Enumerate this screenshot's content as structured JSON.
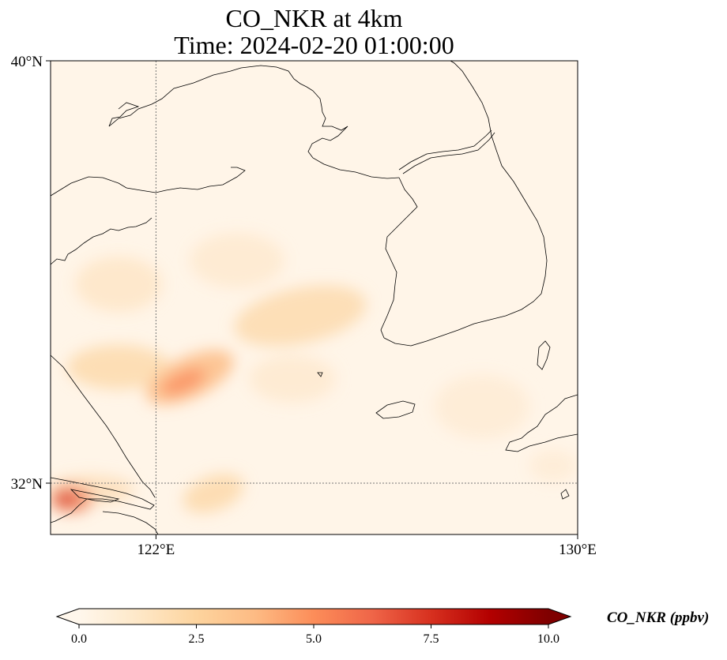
{
  "title": "CO_NKR at 4km",
  "subtitle": "Time: 2024-02-20 01:00:00",
  "map": {
    "lon_range": [
      118,
      130
    ],
    "lat_range": [
      30.8,
      40
    ],
    "lat_ticks": [
      {
        "value": 40,
        "label": "40°N"
      },
      {
        "value": 32,
        "label": "32°N"
      }
    ],
    "lon_ticks": [
      {
        "value": 122,
        "label": "122°E"
      },
      {
        "value": 130,
        "label": "130°E"
      }
    ],
    "gridlines": {
      "lon": 122,
      "lat": 32,
      "style": "dotted"
    }
  },
  "colorbar": {
    "label": "CO_NKR (ppbv)",
    "ticks": [
      "0.0",
      "2.5",
      "5.0",
      "7.5",
      "10.0"
    ],
    "range": [
      0,
      10
    ],
    "extend": "both",
    "colormap": "OrRd",
    "colors": [
      "#fff7ec",
      "#fee8c8",
      "#fdd49e",
      "#fdbb84",
      "#fc8d59",
      "#ef6548",
      "#d7301f",
      "#b30000",
      "#7f0000"
    ]
  }
}
